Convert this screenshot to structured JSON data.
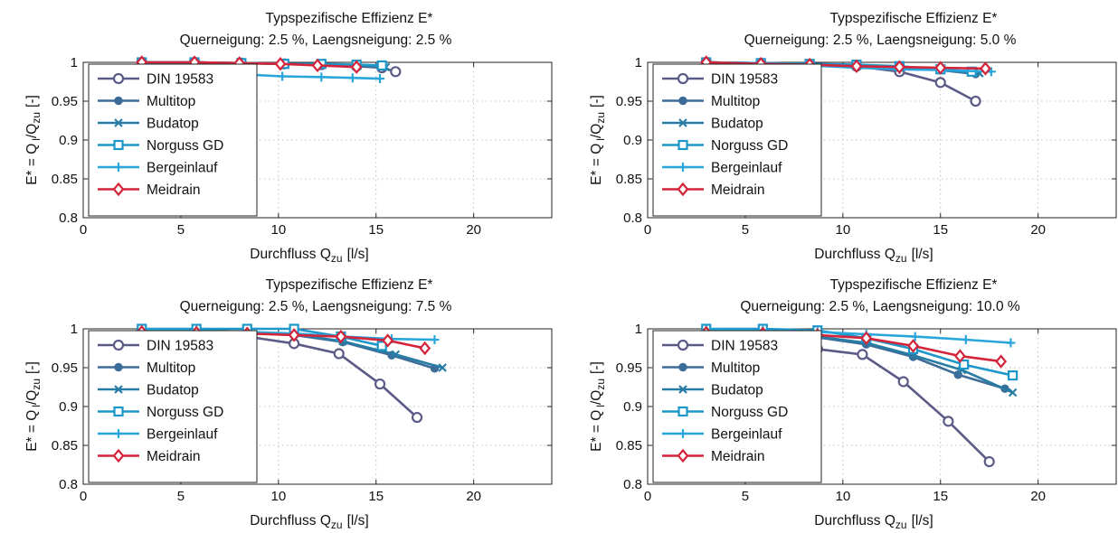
{
  "series_styles": [
    {
      "name": "DIN 19583",
      "color": "#5b5a86",
      "marker": "circle-open"
    },
    {
      "name": "Multitop",
      "color": "#3d6c99",
      "marker": "circle-filled"
    },
    {
      "name": "Budatop",
      "color": "#277ca4",
      "marker": "x"
    },
    {
      "name": "Norguss GD",
      "color": "#1d97c9",
      "marker": "square-open"
    },
    {
      "name": "Bergeinlauf",
      "color": "#28a6dc",
      "marker": "plus"
    },
    {
      "name": "Meidrain",
      "color": "#d4243a",
      "marker": "diamond-open"
    }
  ],
  "chart_data": [
    {
      "type": "line",
      "title": "Typspezifische Effizienz     E*",
      "subtitle": "Querneigung: 2.5 %, Laengsneigung: 2.5 %",
      "xlabel": "Durchfluss  Q",
      "xlabel_sub": "zu",
      "xlabel_unit": "[l/s]",
      "ylabel": "E* = Q",
      "ylabel_sub1": "l",
      "ylabel_mid": "/Q",
      "ylabel_sub2": "zu",
      "ylabel_unit": "[-]",
      "xlim": [
        0,
        24
      ],
      "ylim": [
        0.8,
        1.0
      ],
      "xticks": [
        0,
        5,
        10,
        15,
        20
      ],
      "yticks": [
        "0.8",
        "0.85",
        "0.9",
        "0.95",
        "1"
      ],
      "grid": "dotted",
      "legend": "top-left",
      "series": [
        {
          "name": "DIN 19583",
          "x": [
            3,
            5.7,
            8.1,
            10.3,
            12.2,
            14.0,
            15.3,
            16.0
          ],
          "y": [
            1.0,
            1.0,
            0.999,
            0.998,
            0.997,
            0.995,
            0.993,
            0.988
          ]
        },
        {
          "name": "Multitop",
          "x": [
            3,
            5.7,
            8.1,
            10.3,
            12.2,
            14.0,
            15.3
          ],
          "y": [
            1.0,
            1.0,
            0.999,
            0.998,
            0.997,
            0.996,
            0.995
          ]
        },
        {
          "name": "Budatop",
          "x": [
            3,
            5.7,
            8.1,
            10.3,
            12.2,
            14.0,
            15.5
          ],
          "y": [
            1.0,
            1.0,
            0.999,
            0.998,
            0.997,
            0.996,
            0.994
          ]
        },
        {
          "name": "Norguss GD",
          "x": [
            3,
            5.7,
            8.1,
            10.3,
            12.2,
            14.0,
            15.3
          ],
          "y": [
            1.0,
            1.0,
            0.999,
            0.998,
            0.998,
            0.997,
            0.996
          ]
        },
        {
          "name": "Bergeinlauf",
          "x": [
            3,
            5.7,
            7.8,
            10.2,
            12.2,
            13.8,
            15.2
          ],
          "y": [
            0.998,
            0.99,
            0.985,
            0.982,
            0.981,
            0.98,
            0.979
          ]
        },
        {
          "name": "Meidrain",
          "x": [
            3,
            5.7,
            8.0,
            10.1,
            12.0,
            14.0
          ],
          "y": [
            1.0,
            1.0,
            0.999,
            0.998,
            0.996,
            0.994
          ]
        }
      ]
    },
    {
      "type": "line",
      "title": "Typspezifische Effizienz     E*",
      "subtitle": "Querneigung: 2.5 %, Laengsneigung: 5.0 %",
      "xlabel": "Durchfluss  Q",
      "xlabel_sub": "zu",
      "xlabel_unit": "[l/s]",
      "ylabel": "E* = Q",
      "ylabel_sub1": "l",
      "ylabel_mid": "/Q",
      "ylabel_sub2": "zu",
      "ylabel_unit": "[-]",
      "xlim": [
        0,
        24
      ],
      "ylim": [
        0.8,
        1.0
      ],
      "xticks": [
        0,
        5,
        10,
        15,
        20
      ],
      "yticks": [
        "0.8",
        "0.85",
        "0.9",
        "0.95",
        "1"
      ],
      "grid": "dotted",
      "legend": "top-left",
      "series": [
        {
          "name": "DIN 19583",
          "x": [
            3,
            5.8,
            8.3,
            10.7,
            12.9,
            15.0,
            16.8
          ],
          "y": [
            1.0,
            0.999,
            0.997,
            0.995,
            0.988,
            0.974,
            0.95
          ]
        },
        {
          "name": "Multitop",
          "x": [
            3,
            5.8,
            8.3,
            10.7,
            12.9,
            15.0,
            16.8
          ],
          "y": [
            1.0,
            0.999,
            0.998,
            0.996,
            0.993,
            0.99,
            0.985
          ]
        },
        {
          "name": "Budatop",
          "x": [
            3,
            5.8,
            8.3,
            10.7,
            12.9,
            15.0,
            17.0
          ],
          "y": [
            1.0,
            0.999,
            0.998,
            0.996,
            0.993,
            0.99,
            0.986
          ]
        },
        {
          "name": "Norguss GD",
          "x": [
            3,
            5.8,
            8.3,
            10.7,
            12.9,
            15.0,
            16.6
          ],
          "y": [
            1.0,
            0.999,
            0.998,
            0.997,
            0.995,
            0.991,
            0.988
          ]
        },
        {
          "name": "Bergeinlauf",
          "x": [
            3,
            5.8,
            8.3,
            10.7,
            12.9,
            15.0,
            17.6
          ],
          "y": [
            0.999,
            0.998,
            0.996,
            0.993,
            0.991,
            0.99,
            0.988
          ]
        },
        {
          "name": "Meidrain",
          "x": [
            3,
            5.8,
            8.3,
            10.7,
            12.9,
            15.0,
            17.3
          ],
          "y": [
            1.0,
            0.998,
            0.997,
            0.995,
            0.994,
            0.993,
            0.992
          ]
        }
      ]
    },
    {
      "type": "line",
      "title": "Typspezifische Effizienz     E*",
      "subtitle": "Querneigung: 2.5 %, Laengsneigung: 7.5 %",
      "xlabel": "Durchfluss  Q",
      "xlabel_sub": "zu",
      "xlabel_unit": "[l/s]",
      "ylabel": "E* = Q",
      "ylabel_sub1": "l",
      "ylabel_mid": "/Q",
      "ylabel_sub2": "zu",
      "ylabel_unit": "[-]",
      "xlim": [
        0,
        24
      ],
      "ylim": [
        0.8,
        1.0
      ],
      "xticks": [
        0,
        5,
        10,
        15,
        20
      ],
      "yticks": [
        "0.8",
        "0.85",
        "0.9",
        "0.95",
        "1"
      ],
      "grid": "dotted",
      "legend": "top-left",
      "series": [
        {
          "name": "DIN 19583",
          "x": [
            3,
            5.8,
            8.4,
            10.8,
            13.1,
            15.2,
            17.1
          ],
          "y": [
            0.998,
            0.995,
            0.99,
            0.981,
            0.968,
            0.929,
            0.886
          ]
        },
        {
          "name": "Multitop",
          "x": [
            3,
            5.8,
            8.4,
            10.8,
            13.3,
            15.8,
            18.0
          ],
          "y": [
            0.999,
            0.998,
            0.996,
            0.992,
            0.983,
            0.966,
            0.949
          ]
        },
        {
          "name": "Budatop",
          "x": [
            3,
            5.8,
            8.4,
            10.8,
            13.3,
            16.0,
            18.4
          ],
          "y": [
            0.999,
            0.998,
            0.996,
            0.993,
            0.984,
            0.967,
            0.95
          ]
        },
        {
          "name": "Norguss GD",
          "x": [
            3,
            5.8,
            8.4,
            10.8,
            13.2,
            15.3
          ],
          "y": [
            1.0,
            1.0,
            1.0,
            1.0,
            0.99,
            0.978
          ]
        },
        {
          "name": "Bergeinlauf",
          "x": [
            3,
            5.8,
            8.4,
            10.8,
            13.3,
            15.8,
            18.0
          ],
          "y": [
            0.999,
            0.998,
            0.996,
            0.994,
            0.99,
            0.987,
            0.986
          ]
        },
        {
          "name": "Meidrain",
          "x": [
            3,
            5.8,
            8.4,
            10.8,
            13.2,
            15.6,
            17.5
          ],
          "y": [
            0.996,
            0.995,
            0.994,
            0.992,
            0.99,
            0.985,
            0.975
          ]
        }
      ]
    },
    {
      "type": "line",
      "title": "Typspezifische Effizienz     E*",
      "subtitle": "Querneigung: 2.5 %, Laengsneigung: 10.0 %",
      "xlabel": "Durchfluss  Q",
      "xlabel_sub": "zu",
      "xlabel_unit": "[l/s]",
      "ylabel": "E* = Q",
      "ylabel_sub1": "l",
      "ylabel_mid": "/Q",
      "ylabel_sub2": "zu",
      "ylabel_unit": "[-]",
      "xlim": [
        0,
        24
      ],
      "ylim": [
        0.8,
        1.0
      ],
      "xticks": [
        0,
        5,
        10,
        15,
        20
      ],
      "yticks": [
        "0.8",
        "0.85",
        "0.9",
        "0.95",
        "1"
      ],
      "grid": "dotted",
      "legend": "top-left",
      "series": [
        {
          "name": "DIN 19583",
          "x": [
            3,
            5.9,
            8.7,
            11.0,
            13.1,
            15.4,
            17.5
          ],
          "y": [
            0.993,
            0.985,
            0.974,
            0.967,
            0.932,
            0.881,
            0.829
          ]
        },
        {
          "name": "Multitop",
          "x": [
            3,
            5.9,
            8.7,
            11.2,
            13.6,
            15.9,
            18.3
          ],
          "y": [
            0.998,
            0.994,
            0.989,
            0.98,
            0.964,
            0.941,
            0.923
          ]
        },
        {
          "name": "Budatop",
          "x": [
            3,
            5.9,
            8.7,
            11.2,
            13.6,
            16.1,
            18.7
          ],
          "y": [
            0.998,
            0.995,
            0.99,
            0.982,
            0.966,
            0.947,
            0.918
          ]
        },
        {
          "name": "Norguss GD",
          "x": [
            3,
            5.9,
            8.7,
            11.2,
            13.6,
            16.2,
            18.7
          ],
          "y": [
            1.0,
            1.0,
            0.998,
            0.988,
            0.974,
            0.954,
            0.94
          ]
        },
        {
          "name": "Bergeinlauf",
          "x": [
            3,
            5.9,
            8.7,
            11.2,
            13.7,
            16.3,
            18.6
          ],
          "y": [
            0.999,
            0.998,
            0.996,
            0.993,
            0.99,
            0.986,
            0.982
          ]
        },
        {
          "name": "Meidrain",
          "x": [
            3,
            5.9,
            8.7,
            11.2,
            13.6,
            16.0,
            18.1
          ],
          "y": [
            0.995,
            0.994,
            0.992,
            0.988,
            0.978,
            0.965,
            0.958
          ]
        }
      ]
    }
  ]
}
